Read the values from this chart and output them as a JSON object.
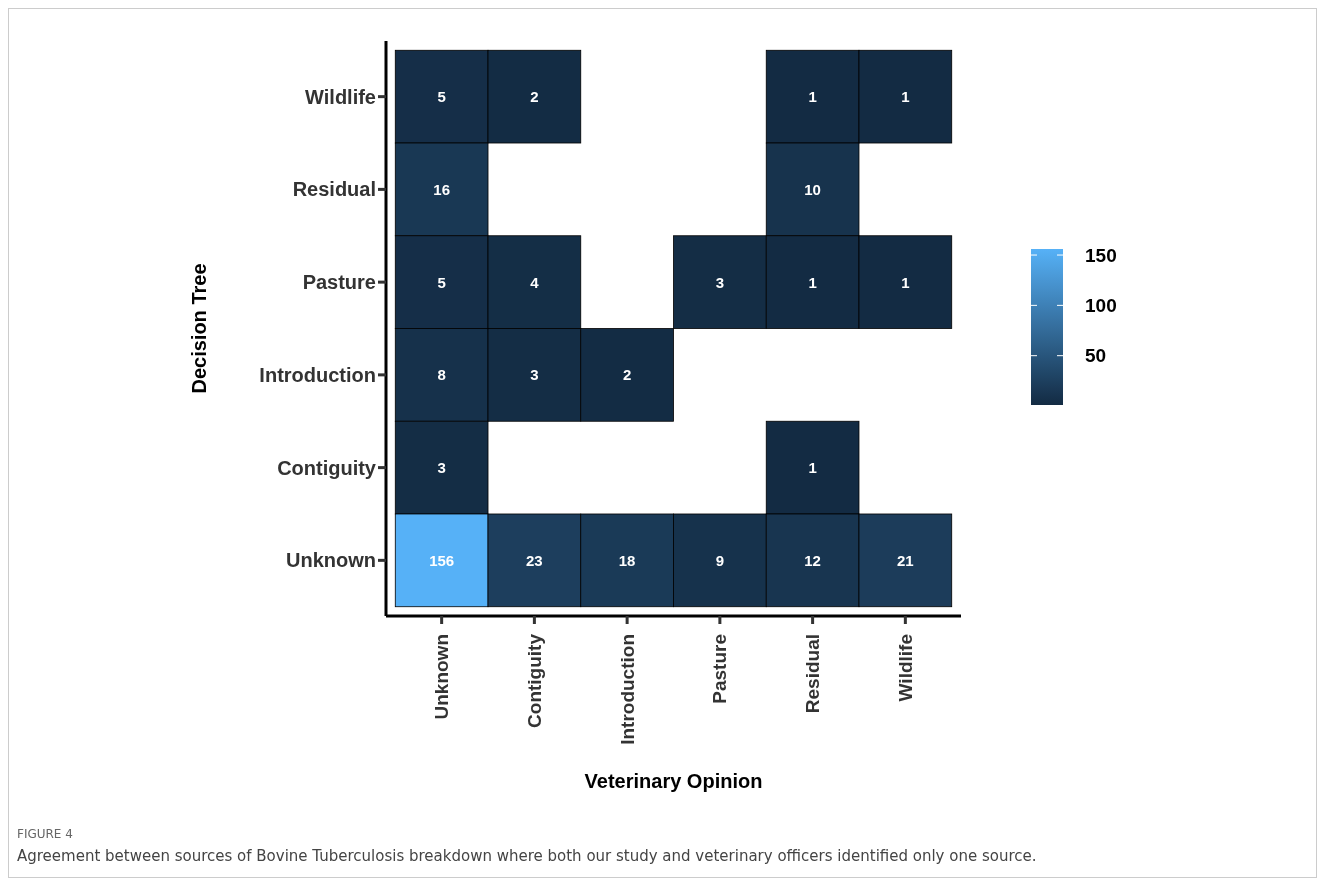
{
  "chart_data": {
    "type": "heatmap",
    "xlabel": "Veterinary Opinion",
    "ylabel": "Decision Tree",
    "categories": [
      "Unknown",
      "Contiguity",
      "Introduction",
      "Pasture",
      "Residual",
      "Wildlife"
    ],
    "y_categories": [
      "Wildlife",
      "Residual",
      "Pasture",
      "Introduction",
      "Contiguity",
      "Unknown"
    ],
    "cells": [
      [
        5,
        2,
        null,
        null,
        1,
        1
      ],
      [
        16,
        null,
        null,
        null,
        10,
        null
      ],
      [
        5,
        4,
        null,
        3,
        1,
        1
      ],
      [
        8,
        3,
        2,
        null,
        null,
        null
      ],
      [
        3,
        null,
        null,
        null,
        1,
        null
      ],
      [
        156,
        23,
        18,
        9,
        12,
        21
      ]
    ],
    "data_labels": true,
    "clim": [
      1,
      156
    ],
    "cticks": [
      50,
      100,
      150
    ],
    "annotations": [
      "FIGURE 4",
      "Agreement between sources of Bovine Tuberculosis breakdown where both our study and veterinary officers identified only one source."
    ]
  }
}
